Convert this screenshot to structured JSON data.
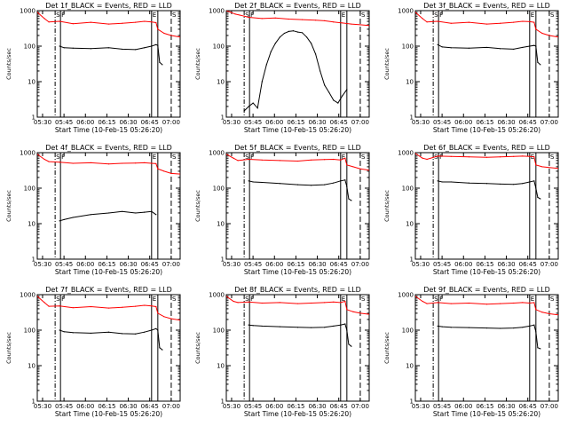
{
  "chart_data": [
    {
      "type": "line",
      "title": "Det 1f_BLACK = Events, RED = LLD",
      "xlabel": "Start Time (10-Feb-15 05:26:20)",
      "ylabel": "Counts/sec",
      "y_scale": "log",
      "ylim": [
        1,
        1000
      ],
      "x_tick_labels": [
        "05:30",
        "05:45",
        "06:00",
        "06:15",
        "06:30",
        "06:45",
        "07:00"
      ],
      "y_tick_labels": [
        "1",
        "10",
        "100",
        "1000"
      ],
      "event_markers": [
        "S",
        "F",
        "E",
        "S"
      ],
      "series": [
        {
          "color": "#ff0000",
          "x": [
            0,
            8,
            13,
            25,
            40,
            60,
            80,
            95,
            110,
            120,
            128,
            133,
            135,
            142,
            150,
            160
          ],
          "y": [
            900,
            600,
            480,
            500,
            430,
            470,
            420,
            440,
            470,
            500,
            480,
            460,
            300,
            230,
            200,
            180
          ]
        },
        {
          "color": "#000000",
          "x": [
            25,
            30,
            40,
            60,
            80,
            95,
            110,
            120,
            128,
            133,
            135,
            137,
            140
          ],
          "y": [
            100,
            90,
            88,
            85,
            90,
            82,
            80,
            90,
            100,
            110,
            105,
            35,
            30
          ]
        }
      ]
    },
    {
      "type": "line",
      "title": "Det 2f_BLACK = Events, RED = LLD",
      "xlabel": "Start Time (10-Feb-15 05:26:20)",
      "ylabel": "Counts/sec",
      "y_scale": "log",
      "ylim": [
        1,
        1000
      ],
      "x_tick_labels": [
        "05:30",
        "05:45",
        "06:00",
        "06:15",
        "06:30",
        "06:45",
        "07:00"
      ],
      "y_tick_labels": [
        "1",
        "10",
        "100",
        "1000"
      ],
      "event_markers": [
        "S",
        "F",
        "E",
        "S"
      ],
      "series": [
        {
          "color": "#ff0000",
          "x": [
            0,
            5,
            10,
            15,
            20,
            25,
            40,
            55,
            70,
            85,
            100,
            110,
            120,
            130,
            140,
            150,
            160
          ],
          "y": [
            1000,
            900,
            800,
            750,
            700,
            650,
            600,
            620,
            580,
            560,
            540,
            520,
            480,
            450,
            420,
            400,
            380
          ]
        },
        {
          "color": "#000000",
          "x": [
            20,
            25,
            30,
            35,
            40,
            45,
            50,
            55,
            60,
            65,
            70,
            75,
            80,
            85,
            90,
            95,
            100,
            105,
            110,
            115,
            120,
            125,
            130,
            135
          ],
          "y": [
            1.5,
            2,
            2.5,
            1.8,
            10,
            30,
            70,
            120,
            180,
            230,
            260,
            270,
            250,
            240,
            180,
            120,
            60,
            20,
            8,
            5,
            3,
            2.5,
            4,
            6
          ]
        }
      ]
    },
    {
      "type": "line",
      "title": "Det 3f_BLACK = Events, RED = LLD",
      "xlabel": "Start Time (10-Feb-15 05:26:20)",
      "ylabel": "Counts/sec",
      "y_scale": "log",
      "ylim": [
        1,
        1000
      ],
      "x_tick_labels": [
        "05:30",
        "05:45",
        "06:00",
        "06:15",
        "06:30",
        "06:45",
        "07:00"
      ],
      "y_tick_labels": [
        "1",
        "10",
        "100",
        "1000"
      ],
      "event_markers": [
        "S",
        "F",
        "E",
        "S"
      ],
      "series": [
        {
          "color": "#ff0000",
          "x": [
            0,
            8,
            13,
            25,
            40,
            60,
            80,
            95,
            110,
            120,
            128,
            133,
            135,
            142,
            150,
            160
          ],
          "y": [
            900,
            600,
            480,
            500,
            440,
            470,
            420,
            440,
            470,
            500,
            490,
            470,
            300,
            230,
            200,
            180
          ]
        },
        {
          "color": "#000000",
          "x": [
            25,
            30,
            40,
            60,
            80,
            95,
            110,
            120,
            128,
            133,
            135,
            137,
            140
          ],
          "y": [
            110,
            95,
            90,
            88,
            92,
            85,
            82,
            92,
            100,
            105,
            100,
            35,
            30
          ]
        }
      ]
    },
    {
      "type": "line",
      "title": "Det 4f_BLACK = Events, RED = LLD",
      "xlabel": "Start Time (10-Feb-15 05:26:20)",
      "ylabel": "Counts/sec",
      "y_scale": "log",
      "ylim": [
        1,
        1000
      ],
      "x_tick_labels": [
        "05:30",
        "05:45",
        "06:00",
        "06:15",
        "06:30",
        "06:45",
        "07:00"
      ],
      "y_tick_labels": [
        "1",
        "10",
        "100",
        "1000"
      ],
      "event_markers": [
        "S",
        "F",
        "E",
        "S"
      ],
      "series": [
        {
          "color": "#ff0000",
          "x": [
            0,
            8,
            13,
            25,
            40,
            60,
            80,
            95,
            110,
            120,
            128,
            133,
            135,
            142,
            150,
            160
          ],
          "y": [
            900,
            650,
            560,
            540,
            500,
            520,
            480,
            500,
            510,
            520,
            500,
            490,
            350,
            300,
            260,
            250
          ]
        },
        {
          "color": "#000000",
          "x": [
            25,
            30,
            40,
            60,
            80,
            95,
            110,
            120,
            128,
            133
          ],
          "y": [
            12,
            13,
            15,
            18,
            20,
            22,
            20,
            21,
            22,
            18
          ]
        }
      ]
    },
    {
      "type": "line",
      "title": "Det 5f_BLACK = Events, RED = LLD",
      "xlabel": "Start Time (10-Feb-15 05:26:20)",
      "ylabel": "Counts/sec",
      "y_scale": "log",
      "ylim": [
        1,
        1000
      ],
      "x_tick_labels": [
        "05:30",
        "05:45",
        "06:00",
        "06:15",
        "06:30",
        "06:45",
        "07:00"
      ],
      "y_tick_labels": [
        "1",
        "10",
        "100",
        "1000"
      ],
      "event_markers": [
        "S",
        "F",
        "E",
        "S"
      ],
      "series": [
        {
          "color": "#ff0000",
          "x": [
            0,
            8,
            13,
            25,
            40,
            60,
            80,
            95,
            110,
            120,
            128,
            133,
            135,
            142,
            150,
            160
          ],
          "y": [
            900,
            700,
            600,
            650,
            620,
            600,
            580,
            620,
            640,
            650,
            620,
            700,
            450,
            400,
            350,
            320
          ]
        },
        {
          "color": "#000000",
          "x": [
            25,
            30,
            40,
            60,
            80,
            95,
            110,
            120,
            128,
            133,
            135,
            137,
            140
          ],
          "y": [
            160,
            150,
            145,
            135,
            125,
            120,
            125,
            140,
            160,
            170,
            110,
            50,
            45
          ]
        }
      ]
    },
    {
      "type": "line",
      "title": "Det 6f_BLACK = Events, RED = LLD",
      "xlabel": "Start Time (10-Feb-15 05:26:20)",
      "ylabel": "Counts/sec",
      "y_scale": "log",
      "ylim": [
        1,
        1000
      ],
      "x_tick_labels": [
        "05:30",
        "05:45",
        "06:00",
        "06:15",
        "06:30",
        "06:45",
        "07:00"
      ],
      "y_tick_labels": [
        "1",
        "10",
        "100",
        "1000"
      ],
      "event_markers": [
        "S",
        "F",
        "E",
        "S"
      ],
      "series": [
        {
          "color": "#ff0000",
          "x": [
            0,
            8,
            13,
            25,
            40,
            60,
            80,
            95,
            110,
            120,
            128,
            133,
            135,
            142,
            150,
            160
          ],
          "y": [
            950,
            700,
            650,
            800,
            780,
            760,
            740,
            760,
            780,
            800,
            780,
            760,
            450,
            400,
            380,
            360
          ]
        },
        {
          "color": "#000000",
          "x": [
            25,
            30,
            40,
            60,
            80,
            95,
            110,
            120,
            128,
            133,
            135,
            137,
            140
          ],
          "y": [
            160,
            150,
            150,
            140,
            135,
            130,
            128,
            135,
            150,
            160,
            100,
            55,
            50
          ]
        }
      ]
    },
    {
      "type": "line",
      "title": "Det 7f_BLACK = Events, RED = LLD",
      "xlabel": "Start Time (10-Feb-15 05:26:20)",
      "ylabel": "Counts/sec",
      "y_scale": "log",
      "ylim": [
        1,
        1000
      ],
      "x_tick_labels": [
        "05:30",
        "05:45",
        "06:00",
        "06:15",
        "06:30",
        "06:45",
        "07:00"
      ],
      "y_tick_labels": [
        "1",
        "10",
        "100",
        "1000"
      ],
      "event_markers": [
        "S",
        "F",
        "E",
        "S"
      ],
      "series": [
        {
          "color": "#ff0000",
          "x": [
            0,
            8,
            13,
            25,
            40,
            60,
            80,
            95,
            110,
            120,
            128,
            133,
            135,
            142,
            150,
            160
          ],
          "y": [
            900,
            600,
            470,
            480,
            430,
            460,
            420,
            440,
            470,
            500,
            480,
            460,
            300,
            240,
            210,
            190
          ]
        },
        {
          "color": "#000000",
          "x": [
            25,
            30,
            40,
            60,
            80,
            95,
            110,
            120,
            128,
            133,
            135,
            137,
            140
          ],
          "y": [
            100,
            90,
            85,
            82,
            88,
            80,
            78,
            88,
            100,
            110,
            100,
            32,
            28
          ]
        }
      ]
    },
    {
      "type": "line",
      "title": "Det 8f_BLACK = Events, RED = LLD",
      "xlabel": "Start Time (10-Feb-15 05:26:20)",
      "ylabel": "Counts/sec",
      "y_scale": "log",
      "ylim": [
        1,
        1000
      ],
      "x_tick_labels": [
        "05:30",
        "05:45",
        "06:00",
        "06:15",
        "06:30",
        "06:45",
        "07:00"
      ],
      "y_tick_labels": [
        "1",
        "10",
        "100",
        "1000"
      ],
      "event_markers": [
        "S",
        "F",
        "E",
        "S"
      ],
      "series": [
        {
          "color": "#ff0000",
          "x": [
            0,
            8,
            13,
            25,
            40,
            60,
            80,
            95,
            110,
            120,
            128,
            133,
            135,
            142,
            150,
            160
          ],
          "y": [
            900,
            650,
            600,
            620,
            580,
            600,
            560,
            580,
            600,
            620,
            600,
            650,
            380,
            330,
            300,
            280
          ]
        },
        {
          "color": "#000000",
          "x": [
            25,
            30,
            40,
            60,
            80,
            95,
            110,
            120,
            128,
            133,
            135,
            137,
            140
          ],
          "y": [
            140,
            135,
            130,
            125,
            120,
            118,
            120,
            130,
            140,
            150,
            100,
            40,
            35
          ]
        }
      ]
    },
    {
      "type": "line",
      "title": "Det 9f_BLACK = Events, RED = LLD",
      "xlabel": "Start Time (10-Feb-15 05:26:20)",
      "ylabel": "Counts/sec",
      "y_scale": "log",
      "ylim": [
        1,
        1000
      ],
      "x_tick_labels": [
        "05:30",
        "05:45",
        "06:00",
        "06:15",
        "06:30",
        "06:45",
        "07:00"
      ],
      "y_tick_labels": [
        "1",
        "10",
        "100",
        "1000"
      ],
      "event_markers": [
        "S",
        "F",
        "E",
        "S"
      ],
      "series": [
        {
          "color": "#ff0000",
          "x": [
            0,
            8,
            13,
            25,
            40,
            60,
            80,
            95,
            110,
            120,
            128,
            133,
            135,
            142,
            150,
            160
          ],
          "y": [
            900,
            650,
            560,
            600,
            560,
            580,
            540,
            560,
            580,
            600,
            580,
            600,
            380,
            320,
            290,
            270
          ]
        },
        {
          "color": "#000000",
          "x": [
            25,
            30,
            40,
            60,
            80,
            95,
            110,
            120,
            128,
            133,
            135,
            137,
            140
          ],
          "y": [
            130,
            125,
            120,
            118,
            115,
            112,
            115,
            120,
            130,
            140,
            90,
            32,
            30
          ]
        }
      ]
    }
  ]
}
